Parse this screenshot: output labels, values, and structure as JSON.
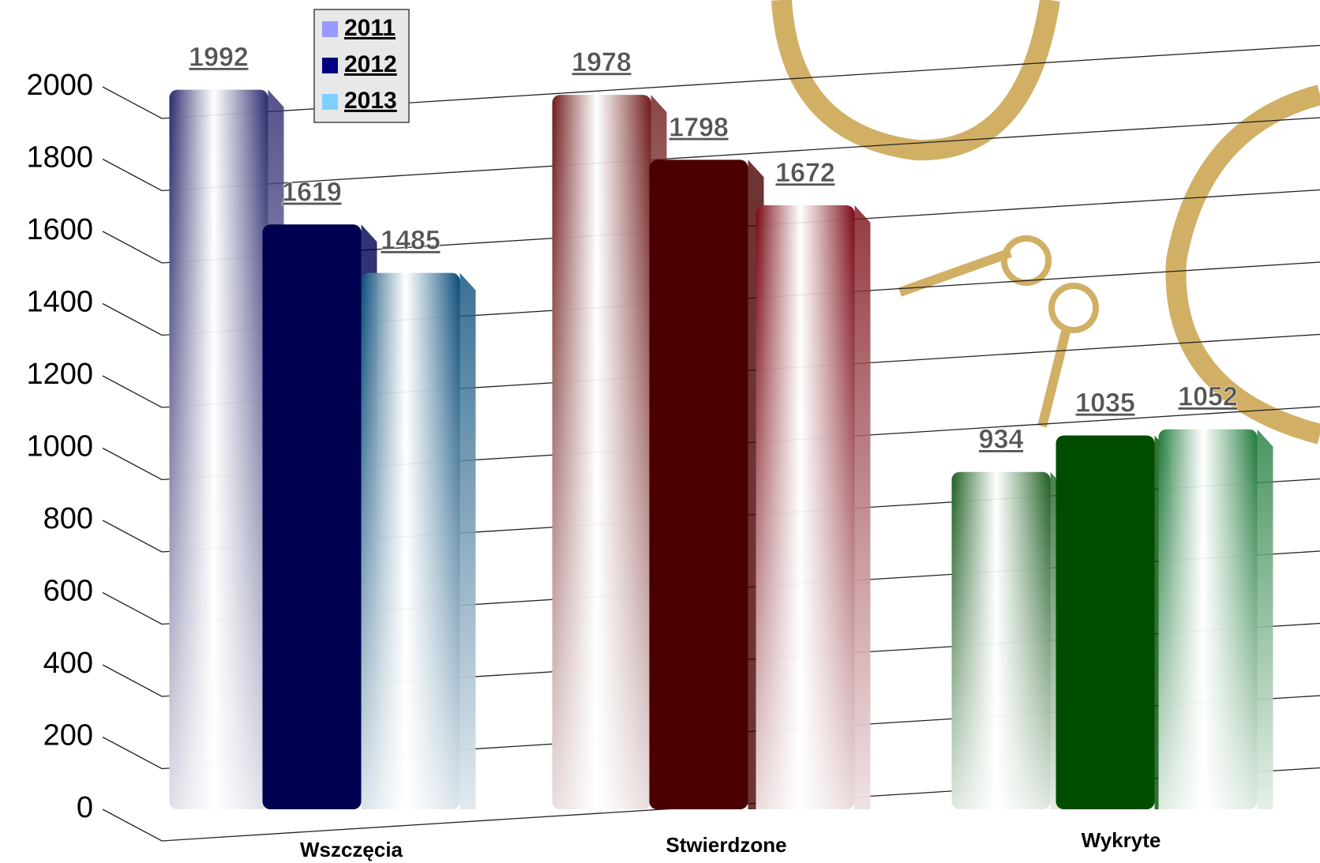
{
  "chart_data": {
    "type": "bar",
    "categories": [
      "Wszczęcia",
      "Stwierdzone",
      "Wykryte"
    ],
    "series": [
      {
        "name": "2011",
        "color": "#9999ff",
        "values": [
          1992,
          1978,
          934
        ],
        "bar_colors": [
          "#2a2a6e",
          "#6e1a1a",
          "#1e5e22"
        ]
      },
      {
        "name": "2012",
        "color": "#000080",
        "values": [
          1619,
          1798,
          1035
        ],
        "bar_colors": [
          "#000050",
          "#4a0000",
          "#004d00"
        ]
      },
      {
        "name": "2013",
        "color": "#7fcfff",
        "values": [
          1485,
          1672,
          1052
        ],
        "bar_colors": [
          "#0a4d7a",
          "#7a0a14",
          "#1f7a3a"
        ]
      }
    ],
    "ylim": [
      0,
      2000
    ],
    "yticks": [
      0,
      200,
      400,
      600,
      800,
      1000,
      1200,
      1400,
      1600,
      1800,
      2000
    ],
    "grid": true
  }
}
